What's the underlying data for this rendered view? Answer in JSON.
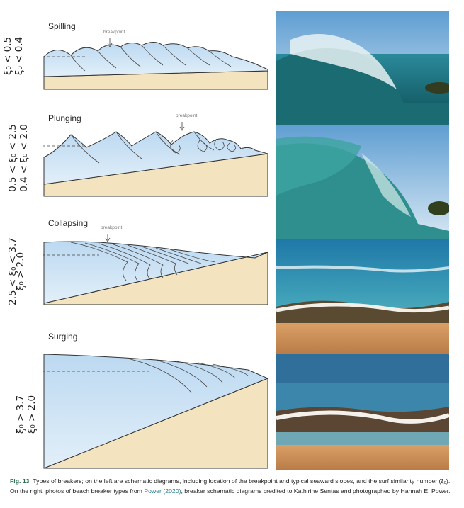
{
  "panels": [
    {
      "title": "Spilling",
      "cond_a": "ξ₀ < 0.5",
      "cond_b": "ξ₀ < 0.4",
      "breakpoint": "breakpoint"
    },
    {
      "title": "Plunging",
      "cond_a": "0.5 < ξ₀ < 2.5",
      "cond_b": "0.4 < ξ₀ < 2.0",
      "breakpoint": "breakpoint"
    },
    {
      "title": "Collapsing",
      "cond_a": "2.5 < ξ₀ < 3.7",
      "cond_b": "ξ₀ > 2.0",
      "breakpoint": "breakpoint"
    },
    {
      "title": "Surging",
      "cond_a": "ξ₀ > 3.7",
      "cond_b": "ξ₀ > 2.0"
    }
  ],
  "photos": [
    "spilling-wave-photo",
    "plunging-wave-photo",
    "collapsing-wave-photo",
    "surging-wave-photo"
  ],
  "caption": {
    "label": "Fig. 13",
    "text1": "Types of breakers; on the left are schematic diagrams, including location of the breakpoint and typical seaward slopes, and the surf similarity number (ξ₀).",
    "text2": "On the right, photos of beach breaker types from",
    "link": "Power (2020)",
    "text3": ", breaker schematic diagrams credited to Kathirine Sentas and photographed by Hannah E. Power."
  },
  "colors": {
    "water": "#cfe4f4",
    "sand": "#f3e3bf",
    "figure_label": "#2a6d4f",
    "link": "#2a7b8c"
  }
}
